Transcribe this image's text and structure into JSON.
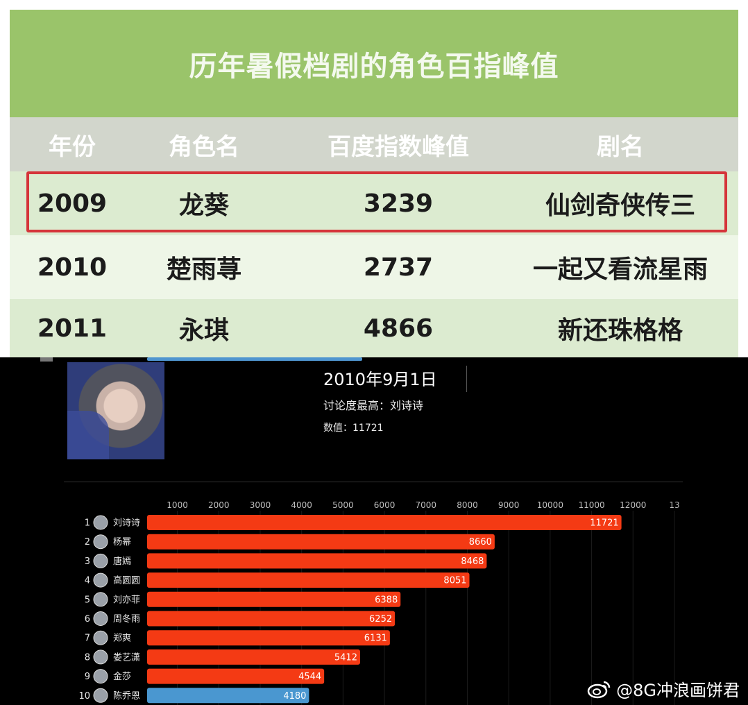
{
  "table": {
    "title": "历年暑假档剧的角色百指峰值",
    "headers": [
      "年份",
      "角色名",
      "百度指数峰值",
      "剧名"
    ],
    "rows": [
      [
        "2009",
        "龙葵",
        "3239",
        "仙剑奇侠传三"
      ],
      [
        "2010",
        "楚雨荨",
        "2737",
        "一起又看流星雨"
      ],
      [
        "2011",
        "永琪",
        "4866",
        "新还珠格格"
      ]
    ],
    "highlighted_row": 0
  },
  "race": {
    "date": "2010年9月1日",
    "top_label": "讨论度最高：刘诗诗",
    "value_label": "数值：11721"
  },
  "chart_data": {
    "type": "bar",
    "orientation": "horizontal",
    "x_ticks": [
      "1000",
      "2000",
      "3000",
      "4000",
      "5000",
      "6000",
      "7000",
      "8000",
      "9000",
      "10000",
      "11000",
      "12000",
      "13"
    ],
    "xlim": [
      0,
      13000
    ],
    "categories": [
      "刘诗诗",
      "杨幂",
      "唐嫣",
      "高圆圆",
      "刘亦菲",
      "周冬雨",
      "郑爽",
      "娄艺潇",
      "金莎",
      "陈乔恩"
    ],
    "ranks": [
      "1",
      "2",
      "3",
      "4",
      "5",
      "6",
      "7",
      "8",
      "9",
      "10"
    ],
    "values": [
      11721,
      8660,
      8468,
      8051,
      6388,
      6252,
      6131,
      5412,
      4544,
      4180
    ],
    "value_labels": [
      "11721",
      "8660",
      "8468",
      "8051",
      "6388",
      "6252",
      "6131",
      "5412",
      "4544",
      "4180"
    ],
    "colors": [
      "#f43a14",
      "#f43a14",
      "#f43a14",
      "#f43a14",
      "#f43a14",
      "#f43a14",
      "#f43a14",
      "#f43a14",
      "#f43a14",
      "#4a97d0"
    ]
  },
  "watermark": {
    "text": "@8G冲浪画饼君",
    "icon": "weibo-icon"
  }
}
